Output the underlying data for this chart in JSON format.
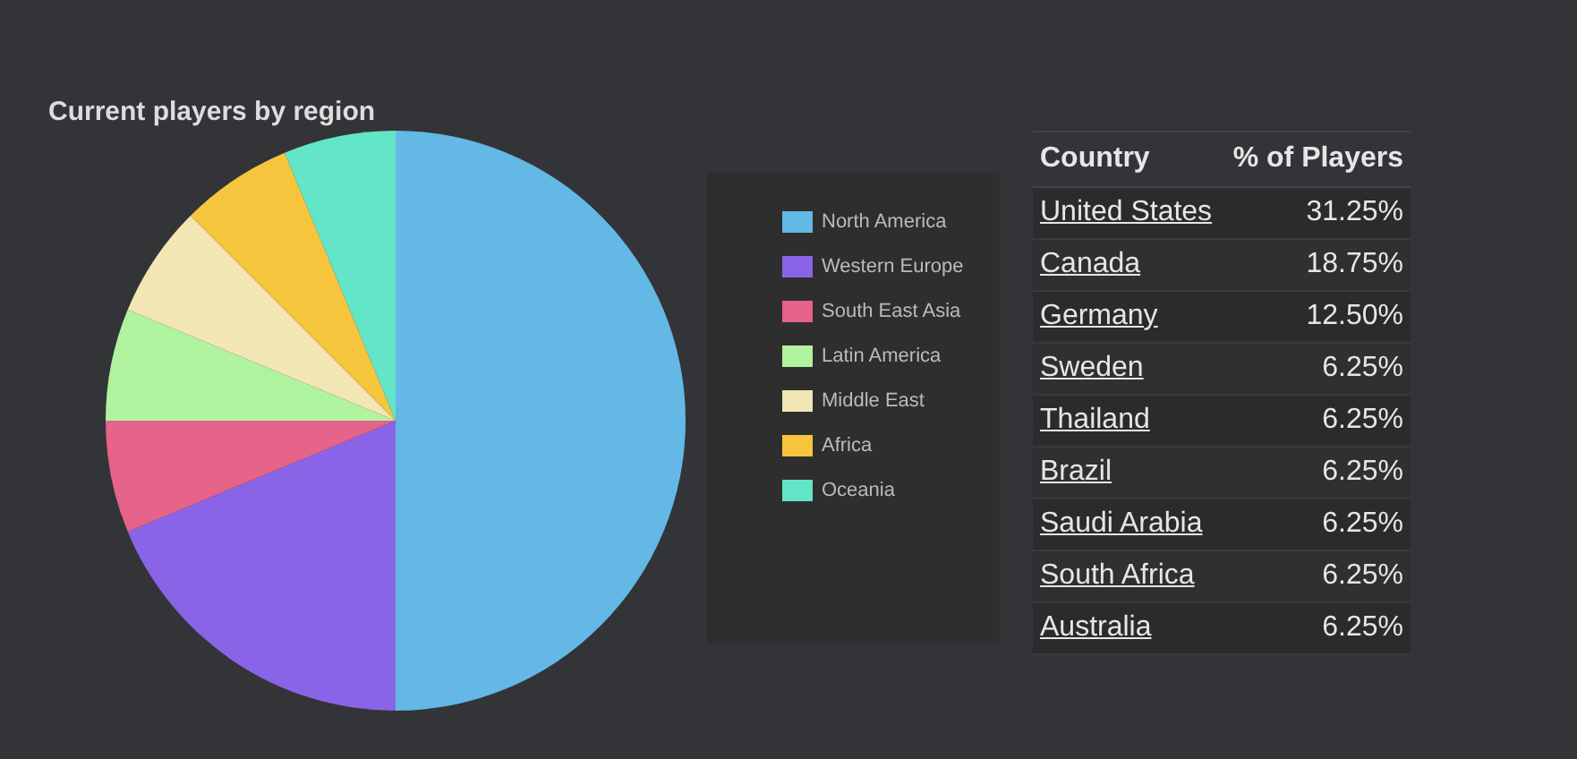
{
  "chart_data": [
    {
      "type": "pie",
      "title": "Current players by region",
      "categories": [
        "North America",
        "Western Europe",
        "South East Asia",
        "Latin America",
        "Middle East",
        "Africa",
        "Oceania"
      ],
      "values": [
        50,
        18.75,
        6.25,
        6.25,
        6.25,
        6.25,
        6.25
      ],
      "colors": [
        "#63b8e5",
        "#8a64e6",
        "#e6638a",
        "#b0f39f",
        "#f2e6b5",
        "#f7c53d",
        "#63e6c8"
      ],
      "legend": "right"
    },
    {
      "type": "other",
      "xlabel": "Country",
      "ylabel": "% of Players",
      "categories": [
        "United States",
        "Canada",
        "Germany",
        "Sweden",
        "Thailand",
        "Brazil",
        "Saudi Arabia",
        "South Africa",
        "Australia"
      ],
      "values": [
        31.25,
        18.75,
        12.5,
        6.25,
        6.25,
        6.25,
        6.25,
        6.25,
        6.25
      ],
      "value_labels": [
        "31.25%",
        "18.75%",
        "12.50%",
        "6.25%",
        "6.25%",
        "6.25%",
        "6.25%",
        "6.25%",
        "6.25%"
      ]
    }
  ]
}
